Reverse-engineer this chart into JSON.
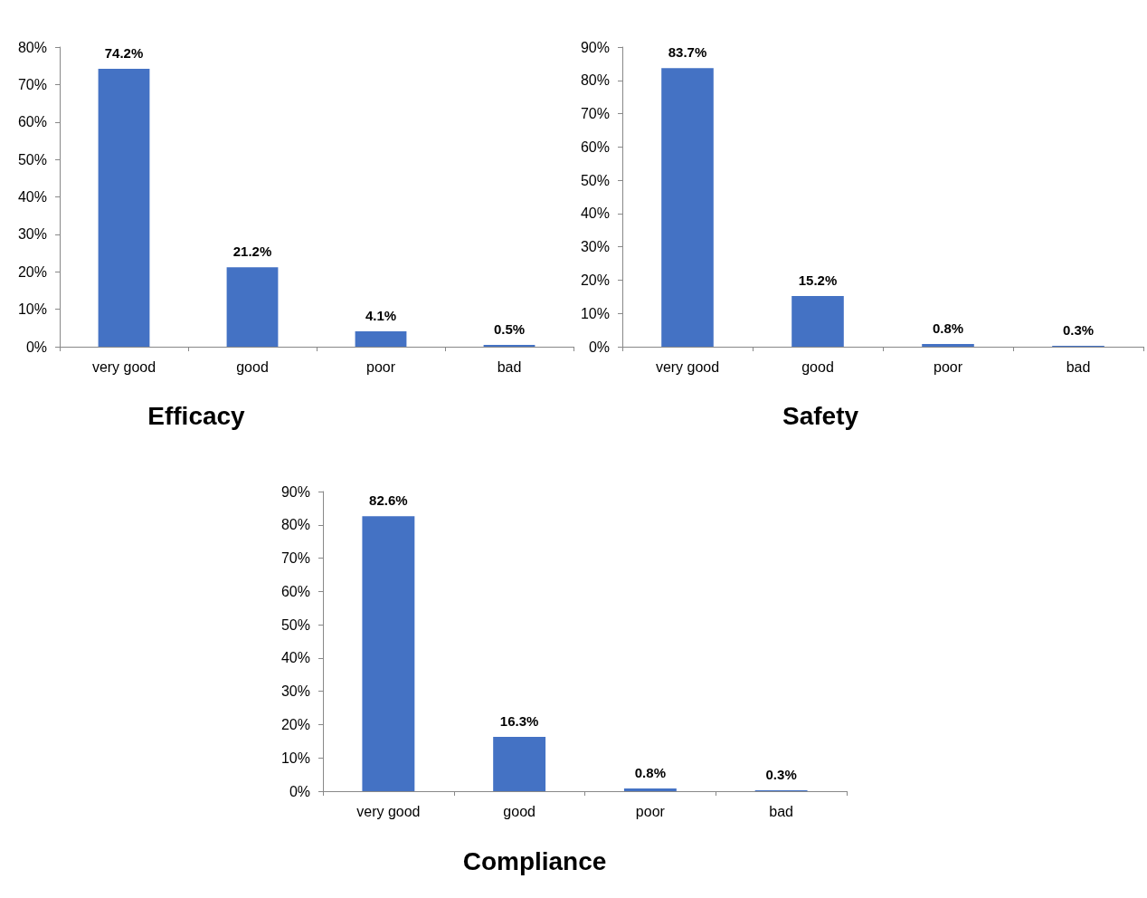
{
  "chart_data": [
    {
      "type": "bar",
      "title": "Efficacy",
      "categories": [
        "very good",
        "good",
        "poor",
        "bad"
      ],
      "values": [
        74.2,
        21.2,
        4.1,
        0.5
      ],
      "value_labels": [
        "74.2%",
        "21.2%",
        "4.1%",
        "0.5%"
      ],
      "color": "#4472c4",
      "ylim": [
        0,
        80
      ],
      "yticks": [
        {
          "value": 0,
          "label": "0%"
        },
        {
          "value": 10,
          "label": "10%"
        },
        {
          "value": 20,
          "label": "20%"
        },
        {
          "value": 30,
          "label": "30%"
        },
        {
          "value": 40,
          "label": "40%"
        },
        {
          "value": 50,
          "label": "50%"
        },
        {
          "value": 60,
          "label": "60%"
        },
        {
          "value": 70,
          "label": "70%"
        },
        {
          "value": 80,
          "label": "80%"
        }
      ],
      "grid": false
    },
    {
      "type": "bar",
      "title": "Safety",
      "categories": [
        "very good",
        "good",
        "poor",
        "bad"
      ],
      "values": [
        83.7,
        15.2,
        0.8,
        0.3
      ],
      "value_labels": [
        "83.7%",
        "15.2%",
        "0.8%",
        "0.3%"
      ],
      "color": "#4472c4",
      "ylim": [
        0,
        90
      ],
      "yticks": [
        {
          "value": 0,
          "label": "0%"
        },
        {
          "value": 10,
          "label": "10%"
        },
        {
          "value": 20,
          "label": "20%"
        },
        {
          "value": 30,
          "label": "30%"
        },
        {
          "value": 40,
          "label": "40%"
        },
        {
          "value": 50,
          "label": "50%"
        },
        {
          "value": 60,
          "label": "60%"
        },
        {
          "value": 70,
          "label": "70%"
        },
        {
          "value": 80,
          "label": "80%"
        },
        {
          "value": 90,
          "label": "90%"
        }
      ],
      "grid": false
    },
    {
      "type": "bar",
      "title": "Compliance",
      "categories": [
        "very good",
        "good",
        "poor",
        "bad"
      ],
      "values": [
        82.6,
        16.3,
        0.8,
        0.3
      ],
      "value_labels": [
        "82.6%",
        "16.3%",
        "0.8%",
        "0.3%"
      ],
      "color": "#4472c4",
      "ylim": [
        0,
        90
      ],
      "yticks": [
        {
          "value": 0,
          "label": "0%"
        },
        {
          "value": 10,
          "label": "10%"
        },
        {
          "value": 20,
          "label": "20%"
        },
        {
          "value": 30,
          "label": "30%"
        },
        {
          "value": 40,
          "label": "40%"
        },
        {
          "value": 50,
          "label": "50%"
        },
        {
          "value": 60,
          "label": "60%"
        },
        {
          "value": 70,
          "label": "70%"
        },
        {
          "value": 80,
          "label": "80%"
        },
        {
          "value": 90,
          "label": "90%"
        }
      ],
      "grid": false
    }
  ]
}
